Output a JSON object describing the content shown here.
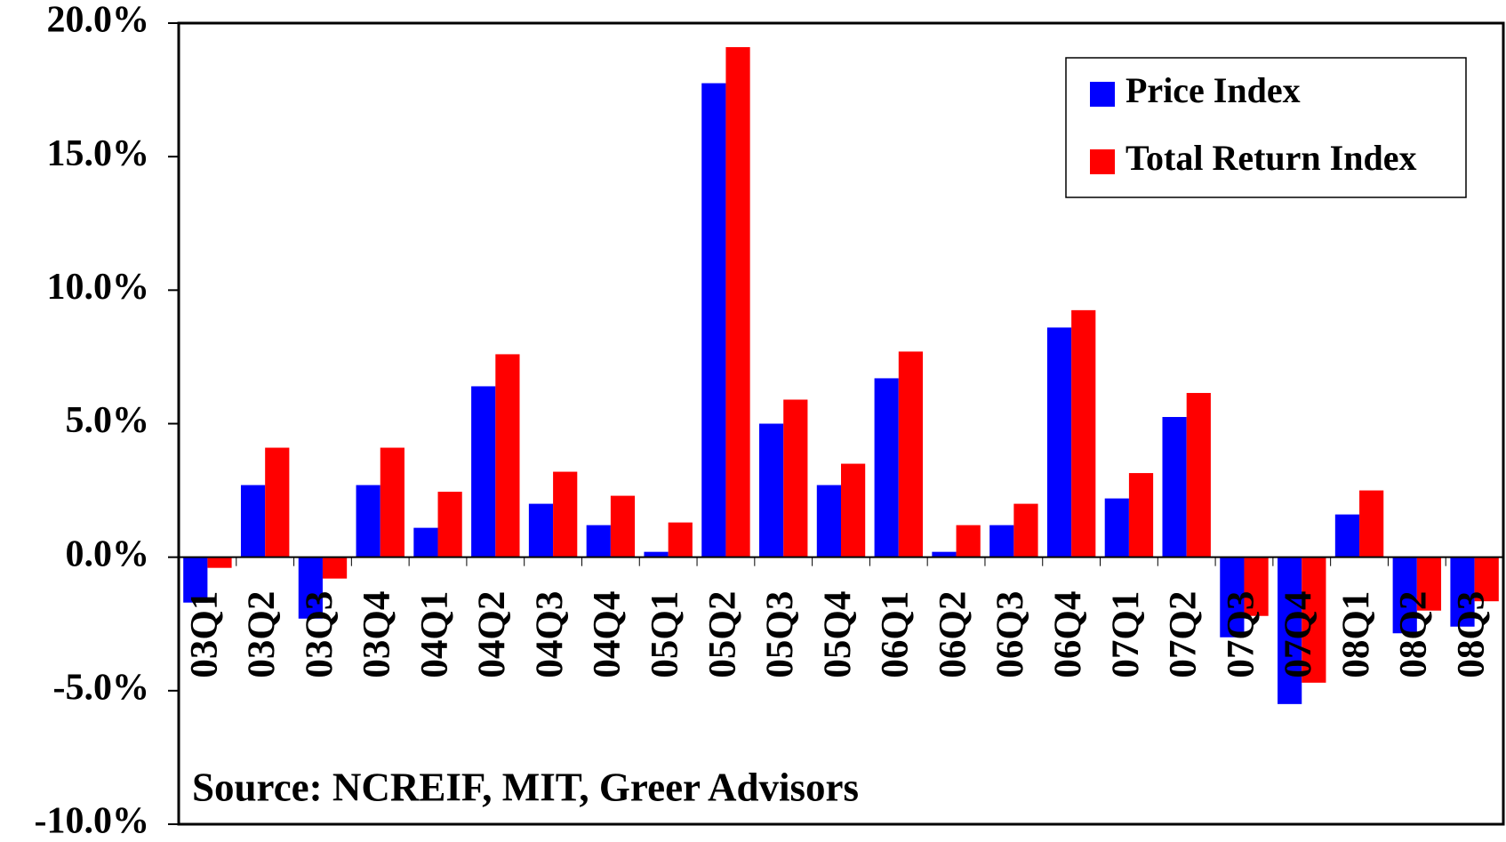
{
  "chart_data": {
    "type": "bar",
    "annotation": "Source: NCREIF, MIT, Greer Advisors",
    "categories": [
      "03Q1",
      "03Q2",
      "03Q3",
      "03Q4",
      "04Q1",
      "04Q2",
      "04Q3",
      "04Q4",
      "05Q1",
      "05Q2",
      "05Q3",
      "05Q4",
      "06Q1",
      "06Q2",
      "06Q3",
      "06Q4",
      "07Q1",
      "07Q2",
      "07Q3",
      "07Q4",
      "08Q1",
      "08Q2",
      "08Q3"
    ],
    "series": [
      {
        "name": "Price Index",
        "color": "#0000ff",
        "values": [
          -1.7,
          2.7,
          -2.3,
          2.7,
          1.1,
          6.4,
          2.0,
          1.2,
          0.2,
          17.75,
          5.0,
          2.7,
          6.7,
          0.2,
          1.2,
          8.6,
          2.2,
          5.25,
          -3.0,
          -5.5,
          1.6,
          -2.85,
          -2.6
        ]
      },
      {
        "name": "Total Return Index",
        "color": "#ff0000",
        "values": [
          -0.4,
          4.1,
          -0.8,
          4.1,
          2.45,
          7.6,
          3.2,
          2.3,
          1.3,
          19.1,
          5.9,
          3.5,
          7.7,
          1.2,
          2.0,
          9.25,
          3.15,
          6.15,
          -2.2,
          -4.7,
          2.5,
          -2.0,
          -1.65
        ]
      }
    ],
    "ylim": [
      -10,
      20
    ],
    "yticks": [
      {
        "value": -10,
        "label": "-10.0%"
      },
      {
        "value": -5,
        "label": "-5.0%"
      },
      {
        "value": 0,
        "label": "0.0%"
      },
      {
        "value": 5,
        "label": "5.0%"
      },
      {
        "value": 10,
        "label": "10.0%"
      },
      {
        "value": 15,
        "label": "15.0%"
      },
      {
        "value": 20,
        "label": "20.0%"
      }
    ],
    "legend": "top-right"
  }
}
